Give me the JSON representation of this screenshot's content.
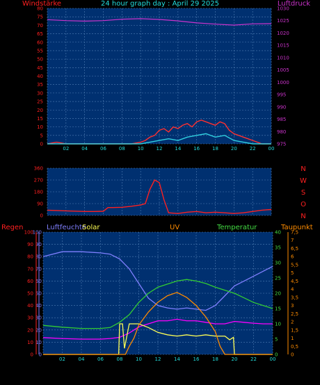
{
  "title": "24 hour graph day : April 29 2025",
  "colors": {
    "background": "#000000",
    "plot_bg": "#003070",
    "grid": "#4f7db3",
    "wind": "#ff3030",
    "gust": "#30d0e0",
    "pressure": "#cc33cc",
    "direction": "#ff2020",
    "humidity": "#7f7fff",
    "solar": "#ffff55",
    "uv": "#ff8c00",
    "temperature": "#33cc33",
    "dewpoint": "#ff00ff",
    "axis_red": "#ff2020",
    "axis_magenta": "#cc33cc",
    "axis_cyan": "#22dddd",
    "axis_blue": "#8080ff",
    "axis_green": "#44dd44",
    "axis_orange": "#ff8c00",
    "title_color": "#22dddd"
  },
  "chart_data": [
    {
      "type": "line",
      "panel": "wind-pressure",
      "left_label": "Windstärke",
      "right_label": "Luftdruck",
      "x_tick_labels": [
        "02",
        "04",
        "06",
        "08",
        "10",
        "12",
        "14",
        "16",
        "18",
        "20",
        "22",
        "00"
      ],
      "y_left_ticks": [
        0,
        5,
        10,
        15,
        20,
        25,
        30,
        35,
        40,
        45,
        50,
        55,
        60,
        65,
        70,
        75,
        80
      ],
      "y_right_ticks": [
        975,
        980,
        985,
        990,
        995,
        1000,
        1005,
        1010,
        1015,
        1020,
        1025,
        1030
      ],
      "ylim_left": [
        0,
        80
      ],
      "ylim_right": [
        975,
        1030
      ],
      "grid": true,
      "series": [
        {
          "key": "wind",
          "x": [
            0,
            1,
            2,
            3,
            4,
            5,
            6,
            7,
            8,
            9,
            10,
            10.5,
            11,
            11.5,
            12,
            12.5,
            13,
            13.5,
            14,
            14.5,
            15,
            15.5,
            16,
            16.5,
            17,
            17.5,
            18,
            18.5,
            19,
            19.5,
            20,
            20.5,
            21,
            21.5,
            22,
            23,
            24
          ],
          "values": [
            0,
            1,
            0,
            0,
            0,
            0,
            0,
            0,
            0,
            0,
            1,
            2,
            4,
            5,
            8,
            9,
            7,
            10,
            9,
            11,
            12,
            10,
            13,
            14,
            13,
            12,
            11,
            13,
            12,
            8,
            6,
            5,
            4,
            3,
            2,
            0,
            0
          ]
        },
        {
          "key": "gust",
          "x": [
            0,
            4,
            8,
            10,
            11,
            12,
            13,
            14,
            15,
            16,
            17,
            18,
            19,
            20,
            21,
            22,
            24
          ],
          "values": [
            0,
            0,
            0,
            0,
            1,
            2,
            3,
            2,
            4,
            5,
            6,
            4,
            5,
            2,
            1,
            0,
            0
          ]
        },
        {
          "key": "pressure",
          "x": [
            0,
            2,
            4,
            6,
            8,
            10,
            12,
            14,
            16,
            18,
            20,
            22,
            24
          ],
          "values": [
            1025.4,
            1025.0,
            1024.8,
            1025.0,
            1025.6,
            1025.8,
            1025.5,
            1024.9,
            1024.1,
            1023.6,
            1023.2,
            1023.7,
            1023.8
          ]
        }
      ]
    },
    {
      "type": "line",
      "panel": "wind-direction",
      "left_label": "",
      "right_direction_labels": [
        "N",
        "W",
        "S",
        "O",
        "N"
      ],
      "y_left_ticks": [
        0,
        90,
        180,
        270,
        360
      ],
      "ylim": [
        0,
        360
      ],
      "grid": true,
      "series": [
        {
          "key": "direction",
          "x": [
            0,
            2,
            4,
            5,
            6,
            6.5,
            7,
            8,
            9,
            10,
            10.5,
            11,
            11.5,
            12,
            12.5,
            13,
            14,
            15,
            16,
            17,
            18,
            19,
            20,
            21,
            22,
            23,
            24
          ],
          "values": [
            40,
            35,
            30,
            30,
            32,
            60,
            60,
            62,
            70,
            80,
            90,
            200,
            270,
            250,
            120,
            20,
            15,
            25,
            30,
            20,
            25,
            20,
            15,
            20,
            30,
            40,
            45
          ]
        }
      ]
    },
    {
      "type": "line",
      "panel": "weather",
      "labels": {
        "rain": "Regen",
        "humidity": "Luftfeuchte",
        "solar": "Solar",
        "uv": "UV",
        "temperature": "Temperatur",
        "dewpoint": "Taupunkt"
      },
      "x_tick_labels": [
        "02",
        "04",
        "06",
        "08",
        "10",
        "12",
        "14",
        "16",
        "18",
        "20",
        "22",
        "00"
      ],
      "y_left_ticks": [
        0,
        10,
        20,
        30,
        40,
        50,
        60,
        70,
        80,
        90,
        100
      ],
      "y_temp_ticks": [
        "0",
        "5",
        "10",
        "15",
        "20",
        "25",
        "30",
        "35",
        "40"
      ],
      "y_uv_ticks": [
        "0",
        "0,5",
        "1",
        "1,5",
        "2",
        "2,5",
        "3",
        "3,5",
        "4",
        "4,5",
        "5",
        "5,5",
        "6",
        "6,5",
        "7",
        "7,5"
      ],
      "grid": true,
      "series": [
        {
          "key": "humidity",
          "x": [
            0,
            2,
            4,
            6,
            7,
            8,
            9,
            10,
            11,
            12,
            13,
            14,
            15,
            16,
            17,
            18,
            19,
            20,
            21,
            22,
            23,
            24
          ],
          "values": [
            80,
            84,
            84,
            83,
            82,
            78,
            70,
            58,
            46,
            40,
            38,
            37,
            38,
            37,
            36,
            40,
            48,
            56,
            60,
            64,
            68,
            72
          ]
        },
        {
          "key": "temperature",
          "x": [
            0,
            2,
            4,
            6,
            7,
            8,
            9,
            10,
            11,
            12,
            13,
            14,
            15,
            16,
            17,
            18,
            19,
            20,
            21,
            22,
            23,
            24
          ],
          "values": [
            9.5,
            8.9,
            8.5,
            8.5,
            8.8,
            10.5,
            13,
            17,
            20,
            22,
            23,
            24,
            24.5,
            24,
            23.2,
            22,
            21,
            20,
            18.5,
            17,
            16,
            15
          ]
        },
        {
          "key": "dewpoint",
          "x": [
            0,
            2,
            4,
            6,
            7,
            8,
            9,
            10,
            11,
            12,
            13,
            14,
            15,
            16,
            17,
            18,
            19,
            20,
            21,
            22,
            23,
            24
          ],
          "values": [
            5.5,
            5.2,
            5.0,
            5.0,
            5.2,
            5.6,
            7,
            9,
            10,
            11,
            11,
            11.5,
            11,
            11,
            10.5,
            10,
            10,
            10.8,
            10.5,
            10.2,
            10.0,
            10.0
          ]
        },
        {
          "key": "solar",
          "x": [
            0,
            7.9,
            8,
            8.3,
            8.5,
            9,
            9.5,
            10,
            11,
            12,
            13,
            14,
            15,
            16,
            17,
            18,
            19,
            19.5,
            19.9,
            20,
            24
          ],
          "values": [
            0,
            0,
            25,
            25,
            5,
            25,
            25,
            25,
            22,
            18,
            16,
            15,
            16,
            15,
            16,
            15,
            15,
            12,
            14,
            0,
            0
          ]
        },
        {
          "key": "uv",
          "x": [
            0,
            8.2,
            8.6,
            9,
            9.5,
            10,
            11,
            12,
            13,
            14,
            15,
            16,
            17,
            18,
            18.5,
            19,
            20,
            24
          ],
          "values": [
            0,
            0,
            0,
            0.5,
            1,
            1.8,
            2.6,
            3.2,
            3.6,
            3.8,
            3.5,
            3.0,
            2.3,
            1.4,
            0.5,
            0,
            0,
            0
          ]
        }
      ]
    }
  ]
}
